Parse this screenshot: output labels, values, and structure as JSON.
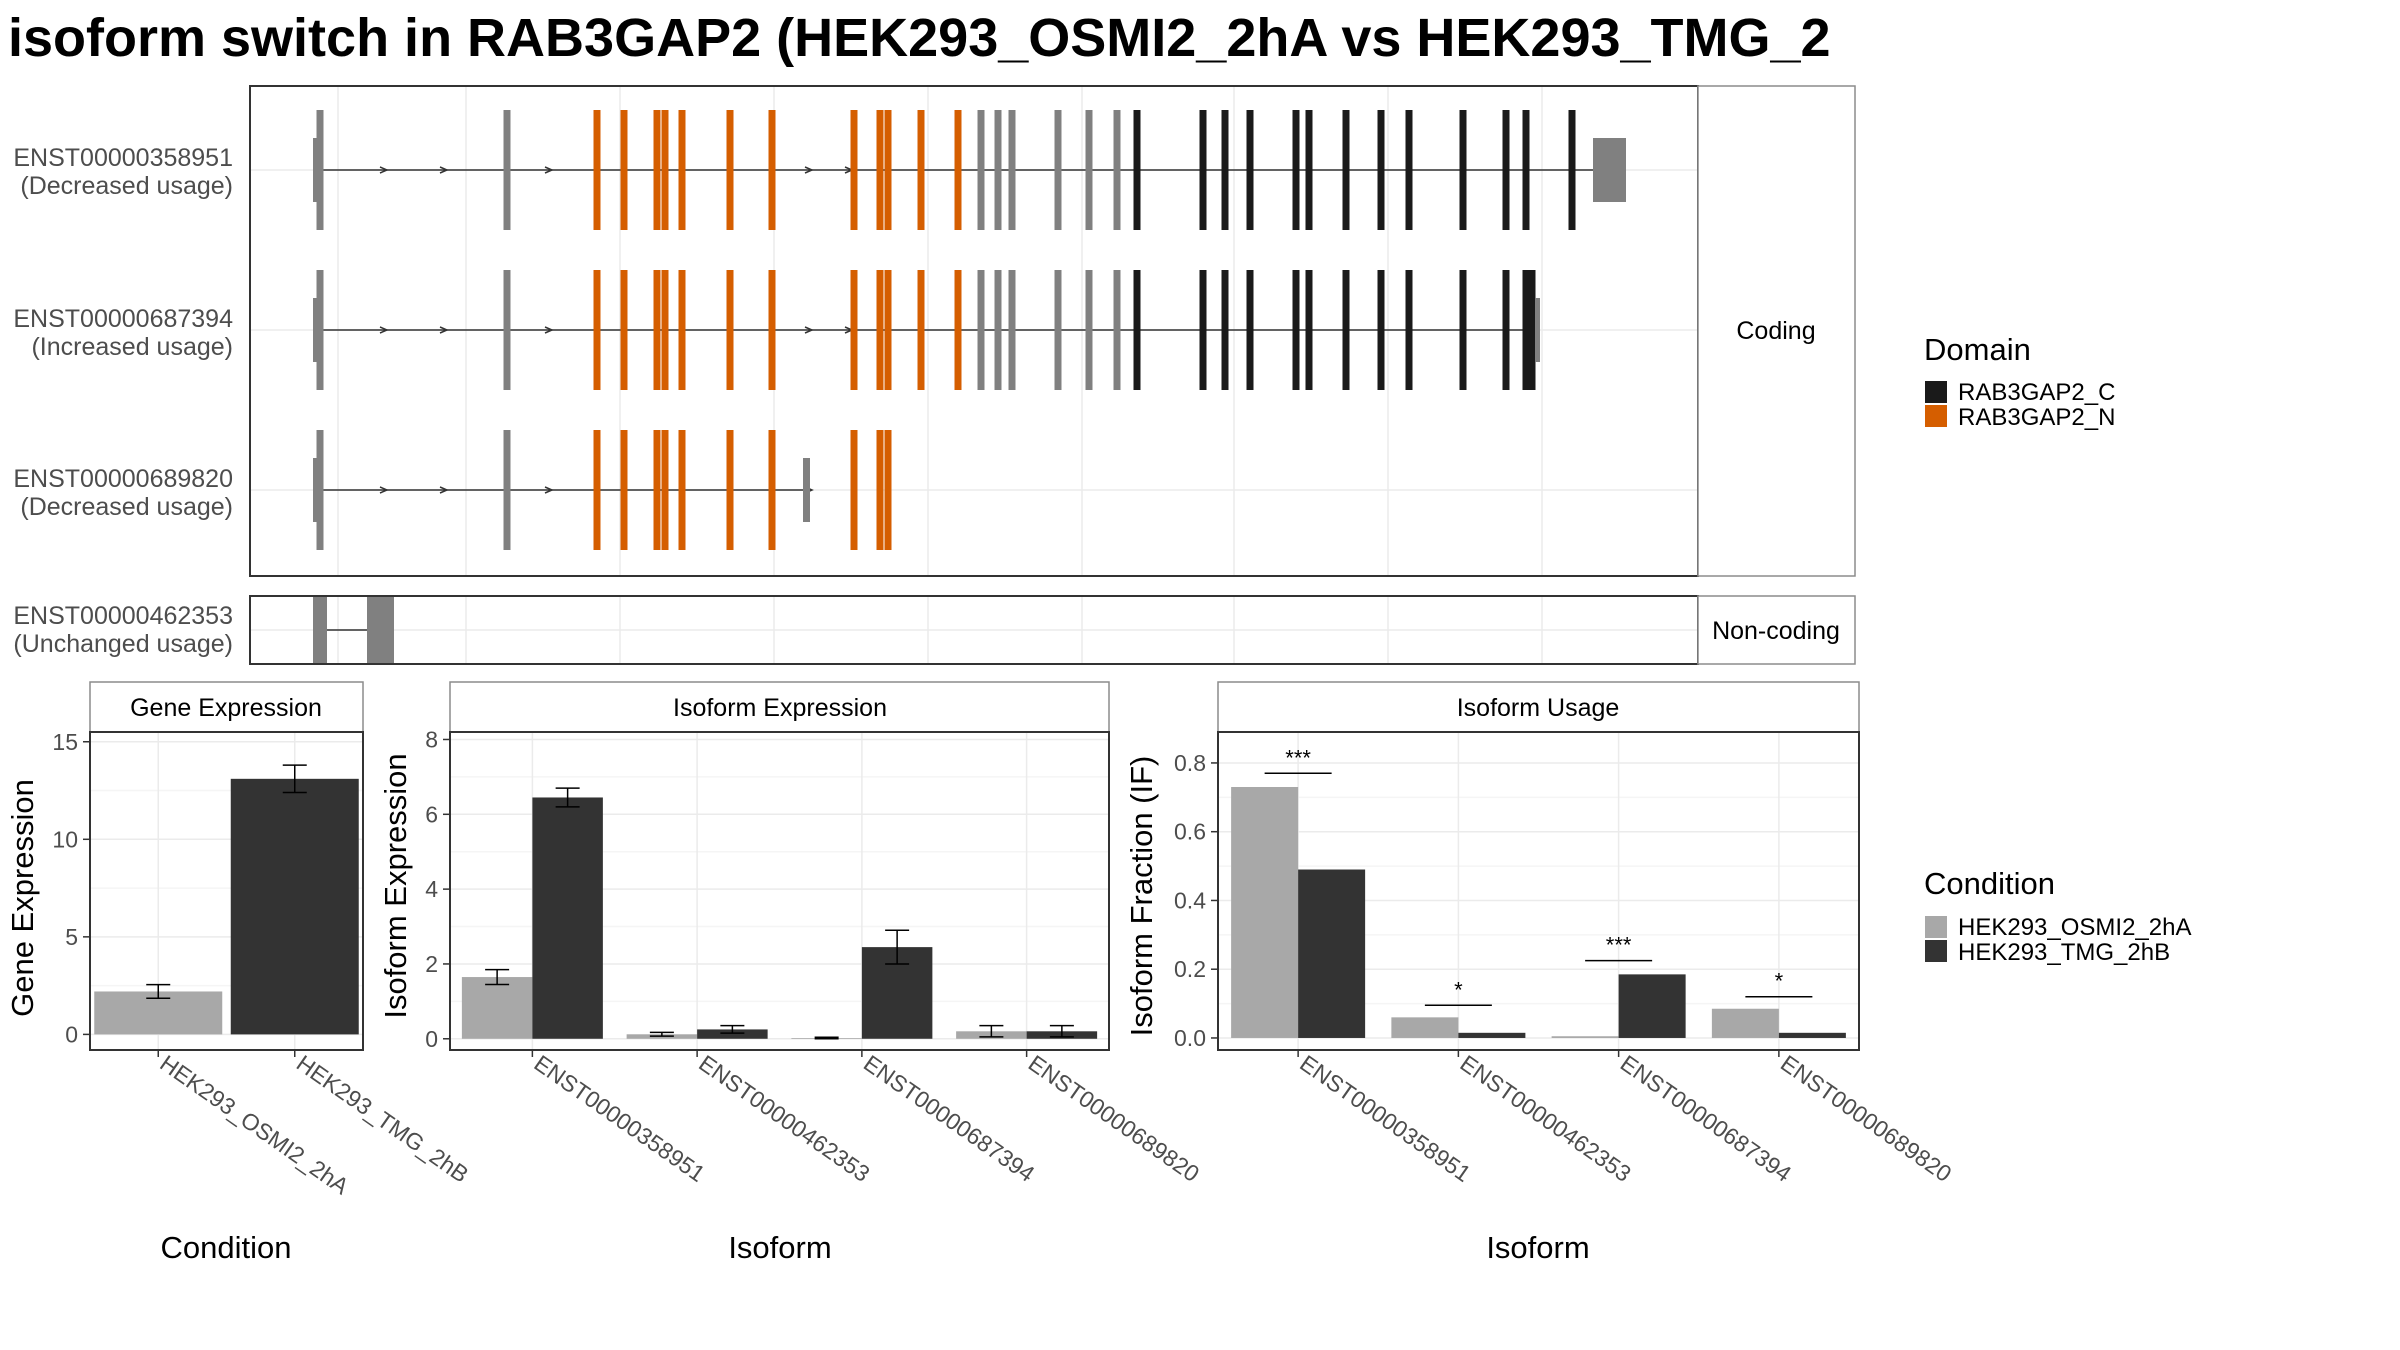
{
  "title": "isoform switch in RAB3GAP2 (HEK293_OSMI2_2hA vs HEK293_TMG_2",
  "colors": {
    "intron_line": "#333333",
    "exon_gray": "#808080",
    "domain_c": "#1a1a1a",
    "domain_n": "#d55e00",
    "cond_a": "#a8a8a8",
    "cond_b": "#333333"
  },
  "structure": {
    "facet_labels": {
      "coding": "Coding",
      "noncoding": "Non-coding"
    },
    "transcripts": [
      {
        "id": "ENST00000358951",
        "usage": "(Decreased usage)"
      },
      {
        "id": "ENST00000687394",
        "usage": "(Increased usage)"
      },
      {
        "id": "ENST00000689820",
        "usage": "(Decreased usage)"
      },
      {
        "id": "ENST00000462353",
        "usage": "(Unchanged usage)"
      }
    ]
  },
  "legends": {
    "domain": {
      "title": "Domain",
      "items": [
        {
          "label": "RAB3GAP2_C",
          "color": "#1a1a1a"
        },
        {
          "label": "RAB3GAP2_N",
          "color": "#d55e00"
        }
      ]
    },
    "condition": {
      "title": "Condition",
      "items": [
        {
          "label": "HEK293_OSMI2_2hA",
          "color": "#a8a8a8"
        },
        {
          "label": "HEK293_TMG_2hB",
          "color": "#333333"
        }
      ]
    }
  },
  "chart_data": [
    {
      "type": "bar",
      "title": "Gene Expression",
      "xlabel": "Condition",
      "ylabel": "Gene Expression",
      "ylim": [
        -0.8,
        15.5
      ],
      "yticks": [
        0,
        5,
        10,
        15
      ],
      "categories": [
        "HEK293_OSMI2_2hA",
        "HEK293_TMG_2hB"
      ],
      "values": [
        2.2,
        13.1
      ],
      "errors": [
        0.35,
        0.7
      ]
    },
    {
      "type": "bar",
      "title": "Isoform Expression",
      "xlabel": "Isoform",
      "ylabel": "Isoform Expression",
      "ylim": [
        -0.3,
        8.2
      ],
      "yticks": [
        0,
        2,
        4,
        6,
        8
      ],
      "categories": [
        "ENST00000358951",
        "ENST00000462353",
        "ENST00000687394",
        "ENST00000689820"
      ],
      "series": [
        {
          "name": "HEK293_OSMI2_2hA",
          "values": [
            1.65,
            0.12,
            0.02,
            0.2
          ],
          "errors": [
            0.2,
            0.05,
            0.02,
            0.15
          ]
        },
        {
          "name": "HEK293_TMG_2hB",
          "values": [
            6.45,
            0.25,
            2.45,
            0.2
          ],
          "errors": [
            0.25,
            0.1,
            0.45,
            0.15
          ]
        }
      ]
    },
    {
      "type": "bar",
      "title": "Isoform Usage",
      "xlabel": "Isoform",
      "ylabel": "Isoform Fraction (IF)",
      "ylim": [
        -0.035,
        0.89
      ],
      "yticks": [
        0.0,
        0.2,
        0.4,
        0.6,
        0.8
      ],
      "categories": [
        "ENST00000358951",
        "ENST00000462353",
        "ENST00000687394",
        "ENST00000689820"
      ],
      "series": [
        {
          "name": "HEK293_OSMI2_2hA",
          "values": [
            0.73,
            0.06,
            0.005,
            0.085
          ]
        },
        {
          "name": "HEK293_TMG_2hB",
          "values": [
            0.49,
            0.015,
            0.185,
            0.015
          ]
        }
      ],
      "significance": [
        {
          "label": "***",
          "y": 0.77
        },
        {
          "label": "*",
          "y": 0.095
        },
        {
          "label": "***",
          "y": 0.225
        },
        {
          "label": "*",
          "y": 0.12
        }
      ]
    }
  ]
}
